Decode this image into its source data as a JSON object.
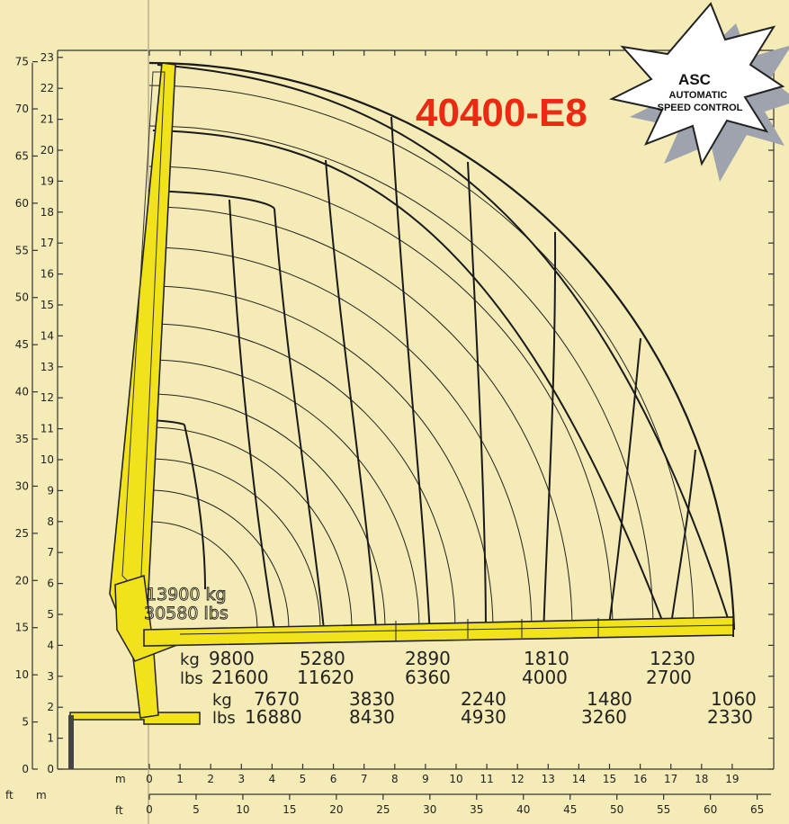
{
  "title": "40400-E8",
  "badge": {
    "line1": "ASC",
    "line2": "AUTOMATIC",
    "line3": "SPEED CONTROL"
  },
  "axes": {
    "left_ft_label": "ft",
    "left_m_label": "m",
    "bottom_m_label": "m",
    "bottom_ft_label": "ft",
    "height_m_ticks": [
      "0",
      "1",
      "2",
      "3",
      "4",
      "5",
      "6",
      "7",
      "8",
      "9",
      "10",
      "11",
      "12",
      "13",
      "14",
      "15",
      "16",
      "17",
      "18",
      "19",
      "20",
      "21",
      "22",
      "23"
    ],
    "height_ft_ticks": [
      "0",
      "5",
      "10",
      "15",
      "20",
      "25",
      "30",
      "35",
      "40",
      "45",
      "50",
      "55",
      "60",
      "65",
      "70",
      "75"
    ],
    "reach_m_ticks": [
      "0",
      "1",
      "2",
      "3",
      "4",
      "5",
      "6",
      "7",
      "8",
      "9",
      "10",
      "11",
      "12",
      "13",
      "14",
      "15",
      "16",
      "17",
      "18",
      "19"
    ],
    "reach_ft_ticks": [
      "0",
      "5",
      "10",
      "15",
      "20",
      "25",
      "30",
      "35",
      "40",
      "45",
      "50",
      "55",
      "60",
      "65"
    ]
  },
  "top_load": {
    "kg": "13900 kg",
    "lbs": "30580 lbs"
  },
  "row1": {
    "kg_label": "kg",
    "lbs_label": "lbs",
    "items": [
      {
        "kg": "9800",
        "lbs": "21600"
      },
      {
        "kg": "5280",
        "lbs": "11620"
      },
      {
        "kg": "2890",
        "lbs": "6360"
      },
      {
        "kg": "1810",
        "lbs": "4000"
      },
      {
        "kg": "1230",
        "lbs": "2700"
      }
    ]
  },
  "row2": {
    "kg_label": "kg",
    "lbs_label": "lbs",
    "items": [
      {
        "kg": "7670",
        "lbs": "16880"
      },
      {
        "kg": "3830",
        "lbs": "8430"
      },
      {
        "kg": "2240",
        "lbs": "4930"
      },
      {
        "kg": "1480",
        "lbs": "3260"
      },
      {
        "kg": "1060",
        "lbs": "2330"
      }
    ]
  },
  "colors": {
    "background": "#f4ebb7",
    "boom": "#f2e21c",
    "title": "#ea2a12",
    "lines": "#1a1a1a"
  }
}
